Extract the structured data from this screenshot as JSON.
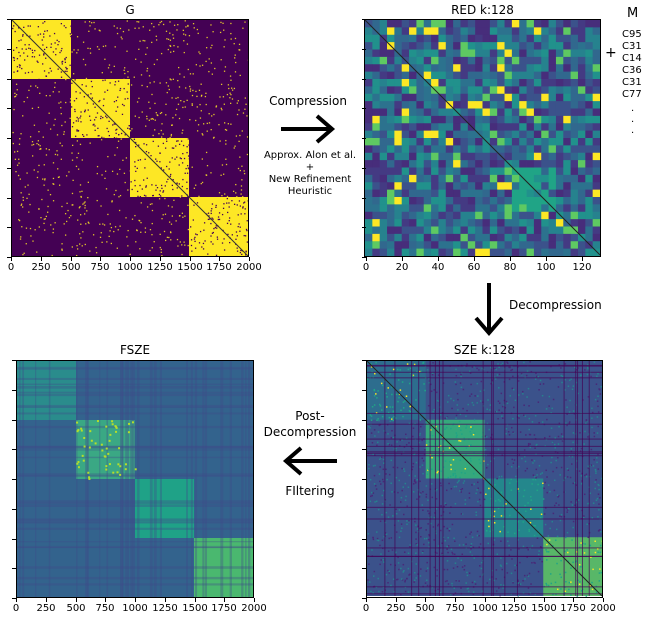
{
  "panels": {
    "g": {
      "title": "G",
      "x_ticks": [
        "0",
        "250",
        "500",
        "750",
        "1000",
        "1250",
        "1500",
        "1750",
        "2000"
      ]
    },
    "red": {
      "title": "RED k:128",
      "x_ticks": [
        "0",
        "20",
        "40",
        "60",
        "80",
        "100",
        "120"
      ]
    },
    "sze": {
      "title": "SZE k:128",
      "x_ticks": [
        "0",
        "250",
        "500",
        "750",
        "1000",
        "1250",
        "1500",
        "1750",
        "2000"
      ]
    },
    "fsze": {
      "title": "FSZE",
      "x_ticks": [
        "0",
        "250",
        "500",
        "750",
        "1000",
        "1250",
        "1500",
        "1750",
        "2000"
      ]
    }
  },
  "steps": {
    "compression": {
      "label": "Compression",
      "methods": [
        "Approx. Alon et al.",
        "+",
        "New Refinement",
        "Heuristic"
      ]
    },
    "decompression": {
      "label": "Decompression"
    },
    "post": {
      "label_line1": "Post-",
      "label_line2": "Decompression",
      "label_line3": "FIltering"
    }
  },
  "m_matrix": {
    "title": "M",
    "plus": "+",
    "entries": [
      "C95",
      "C31",
      "C14",
      "C36",
      "C31",
      "C77"
    ],
    "ellipsis": [
      ".",
      ".",
      "."
    ]
  },
  "colors": {
    "purple": "#440154",
    "yellow": "#fde725",
    "teal": "#21918c",
    "blue": "#31688e",
    "green": "#35b779"
  }
}
